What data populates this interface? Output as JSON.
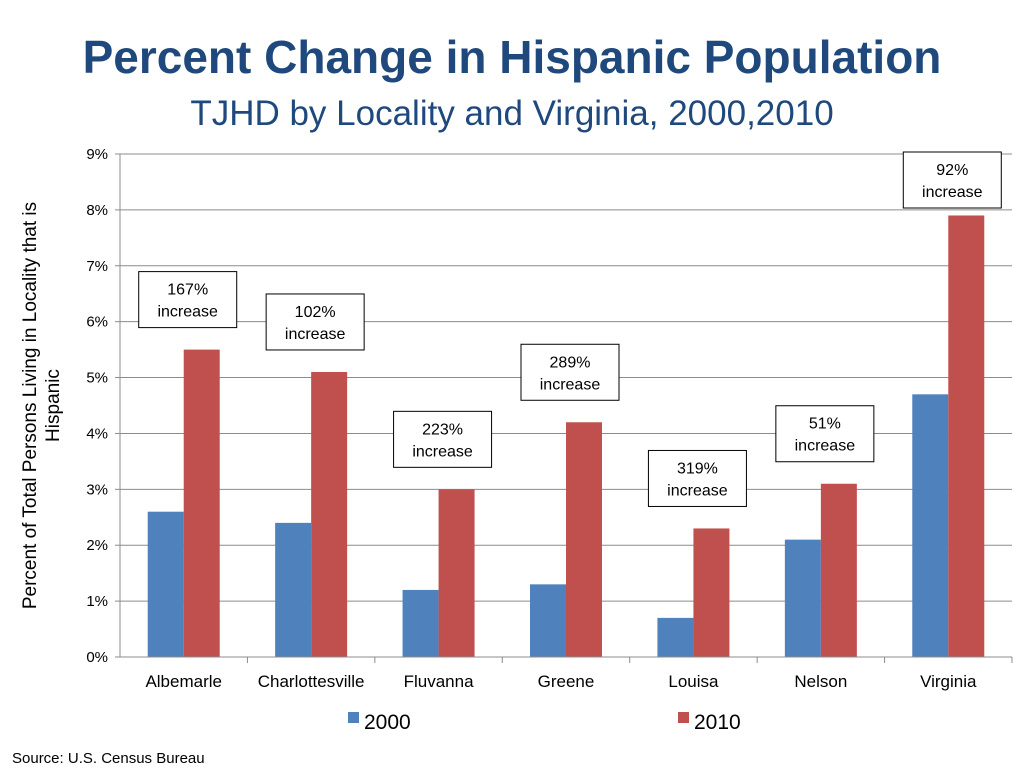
{
  "page": {
    "title": "Percent Change in Hispanic Population",
    "subtitle": "TJHD by Locality and Virginia, 2000,2010",
    "source": "Source: U.S. Census Bureau"
  },
  "chart_data": {
    "type": "bar",
    "title": "",
    "xlabel": "",
    "ylabel": "Percent of Total Persons Living in Locality that is Hispanic",
    "ylim": [
      0,
      9
    ],
    "yticks": [
      "0%",
      "1%",
      "2%",
      "3%",
      "4%",
      "5%",
      "6%",
      "7%",
      "8%",
      "9%"
    ],
    "grid": true,
    "legend_position": "bottom",
    "categories": [
      "Albemarle",
      "Charlottesville",
      "Fluvanna",
      "Greene",
      "Louisa",
      "Nelson",
      "Virginia"
    ],
    "series": [
      {
        "name": "2000",
        "color": "#4f81bd",
        "values": [
          2.6,
          2.4,
          1.2,
          1.3,
          0.7,
          2.1,
          4.7
        ]
      },
      {
        "name": "2010",
        "color": "#c0504d",
        "values": [
          5.5,
          5.1,
          3.0,
          4.2,
          2.3,
          3.1,
          7.9
        ]
      }
    ],
    "annotations": [
      {
        "category": "Albemarle",
        "line1": "167%",
        "line2": "increase"
      },
      {
        "category": "Charlottesville",
        "line1": "102%",
        "line2": "increase"
      },
      {
        "category": "Fluvanna",
        "line1": "223%",
        "line2": "increase"
      },
      {
        "category": "Greene",
        "line1": "289%",
        "line2": "increase"
      },
      {
        "category": "Louisa",
        "line1": "319%",
        "line2": "increase"
      },
      {
        "category": "Nelson",
        "line1": "51%",
        "line2": "increase"
      },
      {
        "category": "Virginia",
        "line1": "92%",
        "line2": "increase"
      }
    ]
  }
}
